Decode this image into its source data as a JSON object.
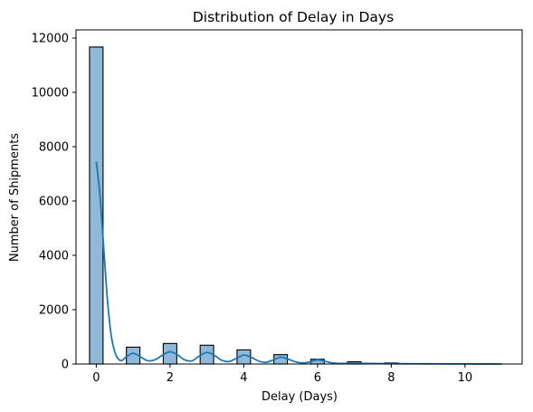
{
  "chart_data": {
    "type": "bar",
    "title": "Distribution of Delay in Days",
    "xlabel": "Delay (Days)",
    "ylabel": "Number of Shipments",
    "xlim": [
      -0.55,
      11.55
    ],
    "ylim": [
      0,
      12300
    ],
    "xticks": [
      0,
      2,
      4,
      6,
      8,
      10
    ],
    "yticks": [
      0,
      2000,
      4000,
      6000,
      8000,
      10000,
      12000
    ],
    "grid": false,
    "bin_width": 0.3667,
    "bins": [
      {
        "x": 0,
        "count": 11670
      },
      {
        "x": 1,
        "count": 620
      },
      {
        "x": 2,
        "count": 755
      },
      {
        "x": 3,
        "count": 690
      },
      {
        "x": 4,
        "count": 520
      },
      {
        "x": 5,
        "count": 345
      },
      {
        "x": 6,
        "count": 175
      },
      {
        "x": 7,
        "count": 85
      },
      {
        "x": 8,
        "count": 40
      },
      {
        "x": 9,
        "count": 15
      },
      {
        "x": 10,
        "count": 5
      }
    ],
    "kde": {
      "x": [
        0,
        0.1,
        0.2,
        0.3,
        0.4,
        0.5,
        0.6,
        0.7,
        0.8,
        1.0,
        1.2,
        1.4,
        1.6,
        1.8,
        2.0,
        2.2,
        2.4,
        2.6,
        2.8,
        3.0,
        3.2,
        3.4,
        3.6,
        3.8,
        4.0,
        4.2,
        4.4,
        4.6,
        4.8,
        5.0,
        5.2,
        5.4,
        5.6,
        5.8,
        6.0,
        6.2,
        6.4,
        6.6,
        7.0,
        7.4,
        8.0,
        8.5,
        9.0,
        9.5,
        10.0,
        10.5,
        11.0
      ],
      "y": [
        7450,
        6200,
        4300,
        2400,
        1100,
        450,
        180,
        130,
        250,
        395,
        260,
        120,
        160,
        330,
        450,
        340,
        150,
        120,
        300,
        430,
        320,
        140,
        90,
        210,
        330,
        250,
        110,
        60,
        150,
        250,
        180,
        80,
        40,
        80,
        150,
        100,
        40,
        20,
        30,
        20,
        15,
        8,
        8,
        5,
        4,
        2,
        1
      ]
    },
    "colors": {
      "bar_fill": "#90b8d8",
      "bar_edge": "#000000",
      "kde_line": "#1f77b4"
    }
  }
}
